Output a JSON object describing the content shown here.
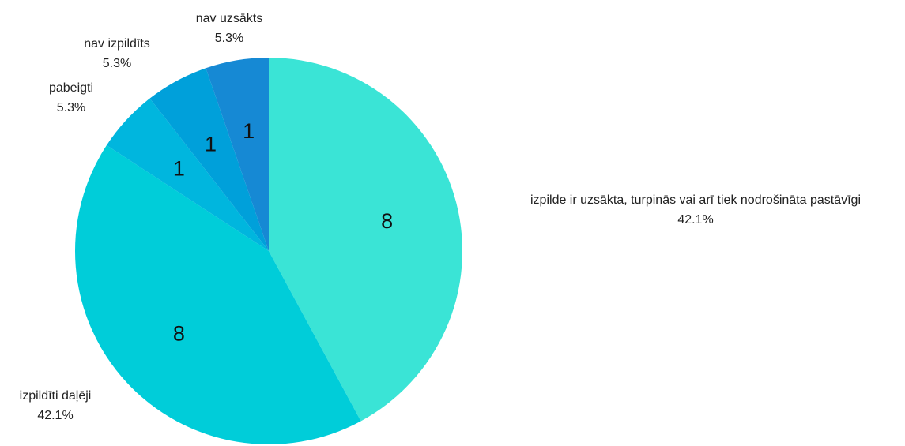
{
  "chart_data": {
    "type": "pie",
    "title": "",
    "slices": [
      {
        "label": "izpilde ir uzsākta, turpinās vai arī tiek nodrošināta pastāvīgi",
        "value": 8,
        "percent_label": "42.1%",
        "value_label": "8",
        "color": "#3ae4d6"
      },
      {
        "label": "izpildīti daļēji",
        "value": 8,
        "percent_label": "42.1%",
        "value_label": "8",
        "color": "#00cdd9"
      },
      {
        "label": "pabeigti",
        "value": 1,
        "percent_label": "5.3%",
        "value_label": "1",
        "color": "#00b6de"
      },
      {
        "label": "nav izpildīts",
        "value": 1,
        "percent_label": "5.3%",
        "value_label": "1",
        "color": "#00a0da"
      },
      {
        "label": "nav uzsākts",
        "value": 1,
        "percent_label": "5.3%",
        "value_label": "1",
        "color": "#1689d4"
      }
    ],
    "start_angle": "12 o'clock",
    "direction": "clockwise",
    "legend": "none"
  }
}
